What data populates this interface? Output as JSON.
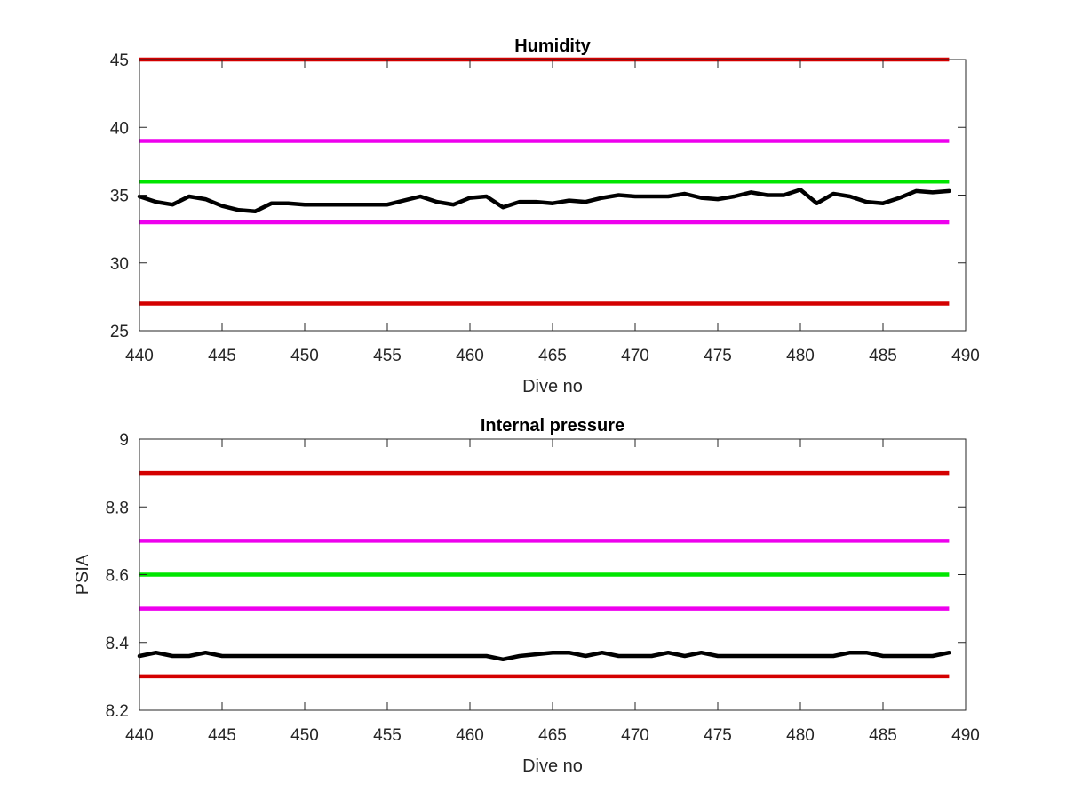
{
  "chart_data": [
    {
      "type": "line",
      "title": "Humidity",
      "xlabel": "Dive no",
      "ylabel": "",
      "xlim": [
        440,
        490
      ],
      "ylim": [
        25,
        45
      ],
      "xticks": [
        "440",
        "445",
        "450",
        "455",
        "460",
        "465",
        "470",
        "475",
        "480",
        "485",
        "490"
      ],
      "yticks": [
        "25",
        "30",
        "35",
        "40",
        "45"
      ],
      "grid": false,
      "reference_lines": [
        {
          "y": 45,
          "color": "#d40000",
          "x": [
            440,
            489
          ]
        },
        {
          "y": 39,
          "color": "#ee00ee",
          "x": [
            440,
            489
          ]
        },
        {
          "y": 36,
          "color": "#00e600",
          "x": [
            440,
            489
          ]
        },
        {
          "y": 33,
          "color": "#ee00ee",
          "x": [
            440,
            489
          ]
        },
        {
          "y": 27,
          "color": "#d40000",
          "x": [
            440,
            489
          ]
        }
      ],
      "series": [
        {
          "color": "#000000",
          "x": [
            440,
            441,
            442,
            443,
            444,
            445,
            446,
            447,
            448,
            449,
            450,
            451,
            452,
            453,
            454,
            455,
            456,
            457,
            458,
            459,
            460,
            461,
            462,
            463,
            464,
            465,
            466,
            467,
            468,
            469,
            470,
            471,
            472,
            473,
            474,
            475,
            476,
            477,
            478,
            479,
            480,
            481,
            482,
            483,
            484,
            485,
            486,
            487,
            488,
            489
          ],
          "y": [
            34.9,
            34.5,
            34.3,
            34.9,
            34.7,
            34.2,
            33.9,
            33.8,
            34.4,
            34.4,
            34.3,
            34.3,
            34.3,
            34.3,
            34.3,
            34.3,
            34.6,
            34.9,
            34.5,
            34.3,
            34.8,
            34.9,
            34.1,
            34.5,
            34.5,
            34.4,
            34.6,
            34.5,
            34.8,
            35.0,
            34.9,
            34.9,
            34.9,
            35.1,
            34.8,
            34.7,
            34.9,
            35.2,
            35.0,
            35.0,
            35.4,
            34.4,
            35.1,
            34.9,
            34.5,
            34.4,
            34.8,
            35.3,
            35.2,
            35.3
          ]
        }
      ]
    },
    {
      "type": "line",
      "title": "Internal pressure",
      "xlabel": "Dive no",
      "ylabel": "PSIA",
      "xlim": [
        440,
        490
      ],
      "ylim": [
        8.2,
        9.0
      ],
      "xticks": [
        "440",
        "445",
        "450",
        "455",
        "460",
        "465",
        "470",
        "475",
        "480",
        "485",
        "490"
      ],
      "yticks": [
        "8.2",
        "8.4",
        "8.6",
        "8.8",
        "9"
      ],
      "grid": false,
      "reference_lines": [
        {
          "y": 8.9,
          "color": "#d40000",
          "x": [
            440,
            489
          ]
        },
        {
          "y": 8.7,
          "color": "#ee00ee",
          "x": [
            440,
            489
          ]
        },
        {
          "y": 8.6,
          "color": "#00e600",
          "x": [
            440,
            489
          ]
        },
        {
          "y": 8.5,
          "color": "#ee00ee",
          "x": [
            440,
            489
          ]
        },
        {
          "y": 8.3,
          "color": "#d40000",
          "x": [
            440,
            489
          ]
        }
      ],
      "series": [
        {
          "color": "#000000",
          "x": [
            440,
            441,
            442,
            443,
            444,
            445,
            446,
            447,
            448,
            449,
            450,
            451,
            452,
            453,
            454,
            455,
            456,
            457,
            458,
            459,
            460,
            461,
            462,
            463,
            464,
            465,
            466,
            467,
            468,
            469,
            470,
            471,
            472,
            473,
            474,
            475,
            476,
            477,
            478,
            479,
            480,
            481,
            482,
            483,
            484,
            485,
            486,
            487,
            488,
            489
          ],
          "y": [
            8.36,
            8.37,
            8.36,
            8.36,
            8.37,
            8.36,
            8.36,
            8.36,
            8.36,
            8.36,
            8.36,
            8.36,
            8.36,
            8.36,
            8.36,
            8.36,
            8.36,
            8.36,
            8.36,
            8.36,
            8.36,
            8.36,
            8.35,
            8.36,
            8.365,
            8.37,
            8.37,
            8.36,
            8.37,
            8.36,
            8.36,
            8.36,
            8.37,
            8.36,
            8.37,
            8.36,
            8.36,
            8.36,
            8.36,
            8.36,
            8.36,
            8.36,
            8.36,
            8.37,
            8.37,
            8.36,
            8.36,
            8.36,
            8.36,
            8.37
          ]
        }
      ]
    }
  ]
}
